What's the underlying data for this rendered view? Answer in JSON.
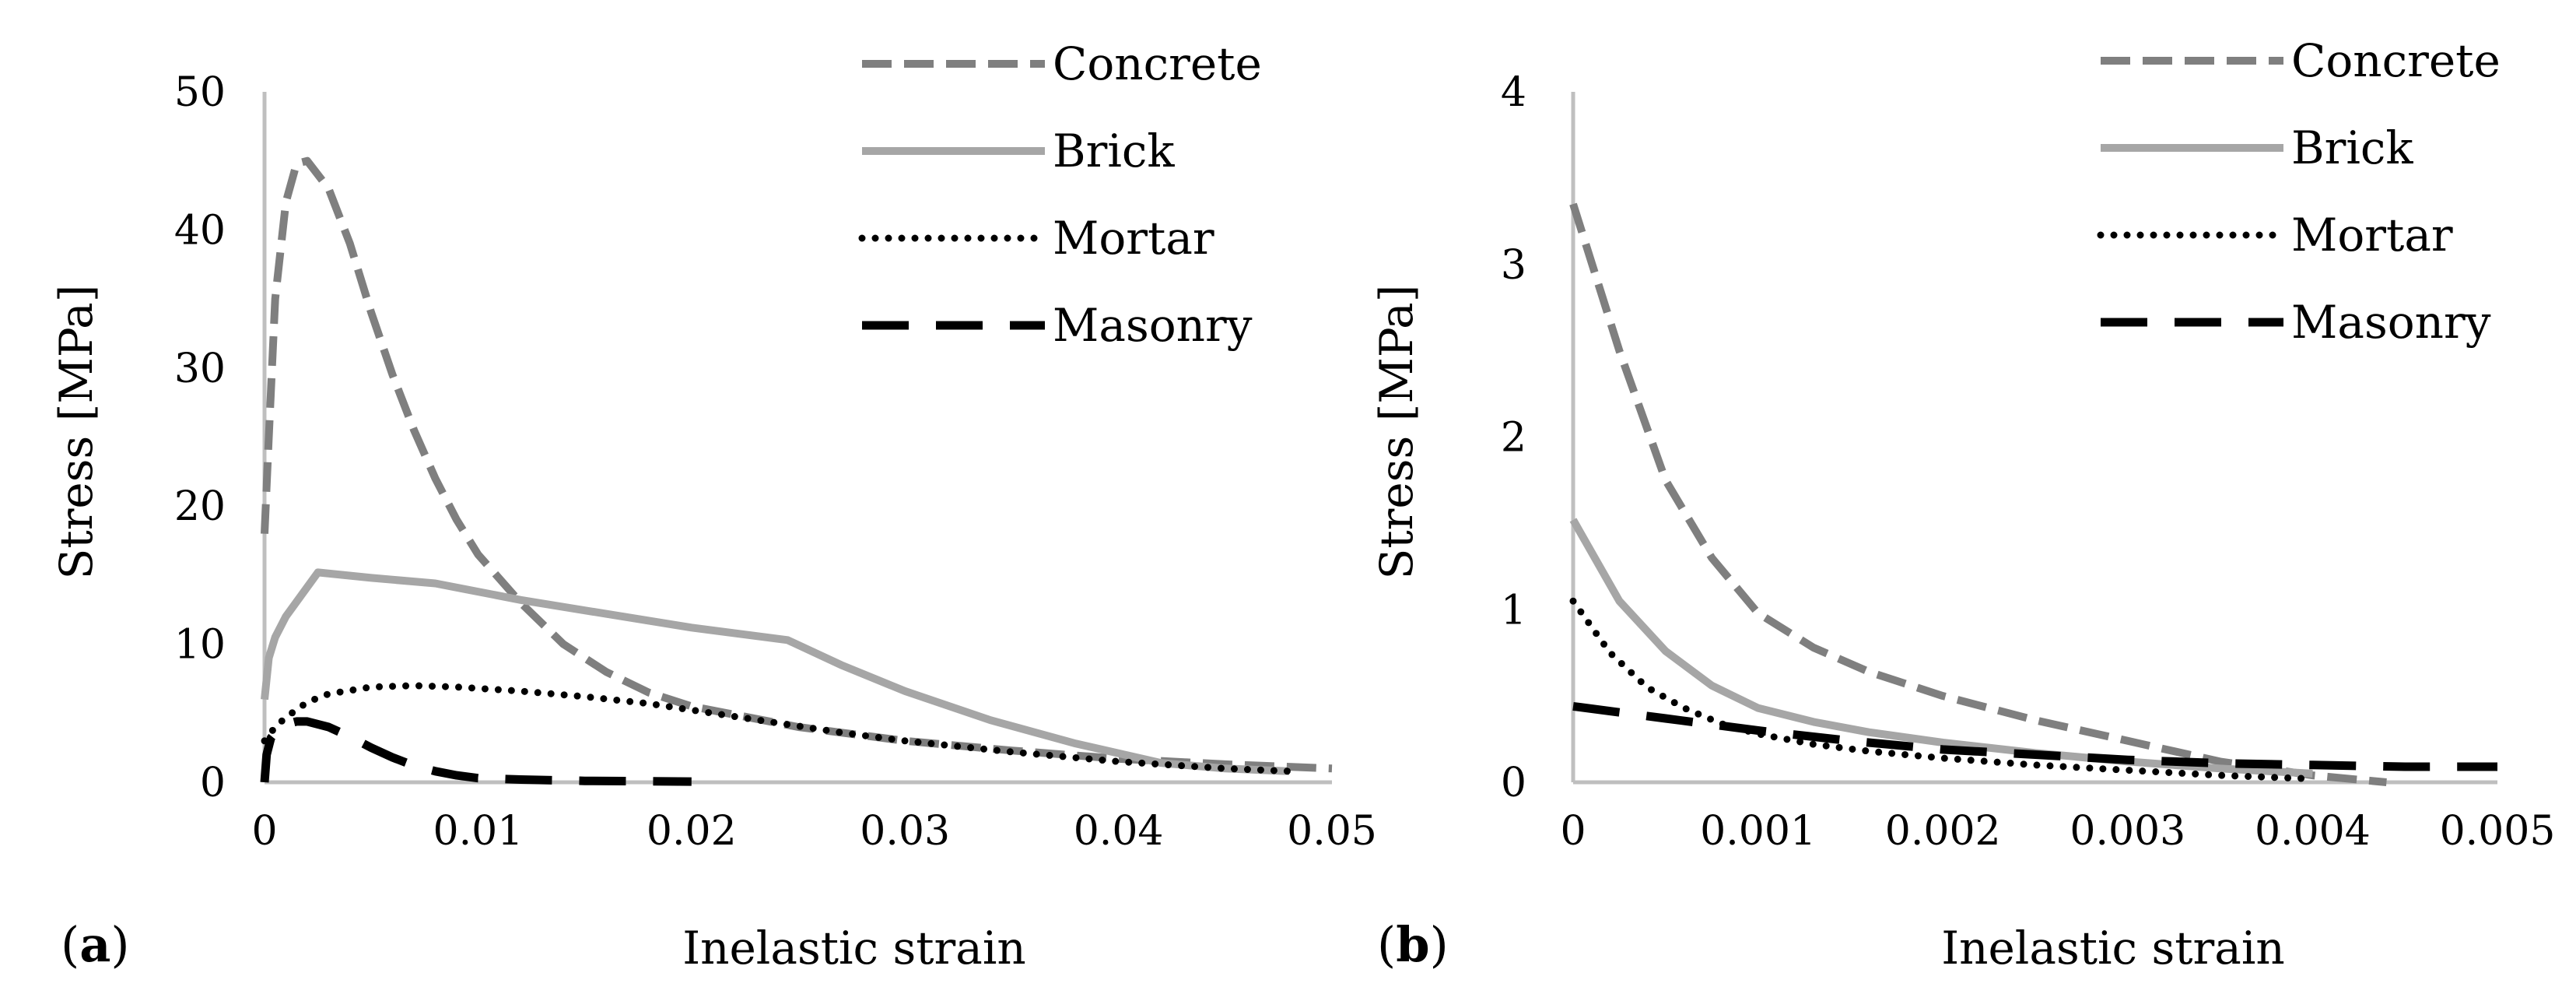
{
  "chart_data": [
    {
      "type": "line",
      "panel_label": "(a)",
      "panel_letter": "a",
      "xlabel": "Inelastic strain",
      "ylabel": "Stress [MPa]",
      "xlim": [
        0,
        0.05
      ],
      "ylim": [
        0,
        50
      ],
      "xticks": [
        0,
        0.01,
        0.02,
        0.03,
        0.04,
        0.05
      ],
      "xtick_labels": [
        "0",
        "0.01",
        "0.02",
        "0.03",
        "0.04",
        "0.05"
      ],
      "yticks": [
        0,
        10,
        20,
        30,
        40,
        50
      ],
      "ytick_labels": [
        "0",
        "10",
        "20",
        "30",
        "40",
        "50"
      ],
      "legend_position": "top-right",
      "series": [
        {
          "name": "Concrete",
          "color": "#7f7f7f",
          "dash": "dash",
          "points": [
            [
              0,
              18
            ],
            [
              0.0002,
              25
            ],
            [
              0.0005,
              35
            ],
            [
              0.001,
              42
            ],
            [
              0.0015,
              44.8
            ],
            [
              0.002,
              45
            ],
            [
              0.003,
              43
            ],
            [
              0.004,
              39
            ],
            [
              0.005,
              34
            ],
            [
              0.006,
              29.5
            ],
            [
              0.007,
              25.5
            ],
            [
              0.008,
              22
            ],
            [
              0.009,
              19
            ],
            [
              0.01,
              16.5
            ],
            [
              0.012,
              13
            ],
            [
              0.014,
              10
            ],
            [
              0.016,
              8
            ],
            [
              0.018,
              6.5
            ],
            [
              0.02,
              5.5
            ],
            [
              0.025,
              4
            ],
            [
              0.03,
              3
            ],
            [
              0.035,
              2.3
            ],
            [
              0.04,
              1.7
            ],
            [
              0.045,
              1.3
            ],
            [
              0.05,
              1
            ]
          ]
        },
        {
          "name": "Brick",
          "color": "#a6a6a6",
          "dash": "solid",
          "points": [
            [
              0,
              6
            ],
            [
              0.0002,
              9
            ],
            [
              0.0005,
              10.5
            ],
            [
              0.001,
              12
            ],
            [
              0.0025,
              15.2
            ],
            [
              0.005,
              14.8
            ],
            [
              0.008,
              14.4
            ],
            [
              0.012,
              13.2
            ],
            [
              0.016,
              12.2
            ],
            [
              0.02,
              11.2
            ],
            [
              0.0245,
              10.3
            ],
            [
              0.027,
              8.5
            ],
            [
              0.03,
              6.6
            ],
            [
              0.034,
              4.5
            ],
            [
              0.038,
              2.8
            ],
            [
              0.042,
              1.4
            ],
            [
              0.045,
              1
            ],
            [
              0.048,
              0.8
            ]
          ]
        },
        {
          "name": "Mortar",
          "color": "#000000",
          "dash": "dot",
          "points": [
            [
              0,
              3
            ],
            [
              0.0005,
              4
            ],
            [
              0.001,
              4.7
            ],
            [
              0.002,
              5.8
            ],
            [
              0.003,
              6.4
            ],
            [
              0.005,
              6.9
            ],
            [
              0.007,
              7
            ],
            [
              0.009,
              6.9
            ],
            [
              0.012,
              6.6
            ],
            [
              0.015,
              6.2
            ],
            [
              0.018,
              5.7
            ],
            [
              0.021,
              5
            ],
            [
              0.024,
              4.3
            ],
            [
              0.027,
              3.6
            ],
            [
              0.03,
              3
            ],
            [
              0.035,
              2.2
            ],
            [
              0.04,
              1.5
            ],
            [
              0.045,
              1
            ],
            [
              0.048,
              0.8
            ]
          ]
        },
        {
          "name": "Masonry",
          "color": "#000000",
          "dash": "longdash",
          "points": [
            [
              0,
              0
            ],
            [
              0.0001,
              2
            ],
            [
              0.0003,
              3.2
            ],
            [
              0.0006,
              3.8
            ],
            [
              0.001,
              4.2
            ],
            [
              0.0015,
              4.4
            ],
            [
              0.002,
              4.4
            ],
            [
              0.003,
              4
            ],
            [
              0.004,
              3.3
            ],
            [
              0.005,
              2.5
            ],
            [
              0.006,
              1.8
            ],
            [
              0.007,
              1.2
            ],
            [
              0.008,
              0.8
            ],
            [
              0.009,
              0.5
            ],
            [
              0.01,
              0.3
            ],
            [
              0.012,
              0.2
            ],
            [
              0.015,
              0.1
            ],
            [
              0.02,
              0.05
            ]
          ]
        }
      ]
    },
    {
      "type": "line",
      "panel_label": "(b)",
      "panel_letter": "b",
      "xlabel": "Inelastic strain",
      "ylabel": "Stress [MPa]",
      "xlim": [
        0,
        0.005
      ],
      "ylim": [
        0,
        4
      ],
      "xticks": [
        0,
        0.001,
        0.002,
        0.003,
        0.004,
        0.005
      ],
      "xtick_labels": [
        "0",
        "0.001",
        "0.002",
        "0.003",
        "0.004",
        "0.005"
      ],
      "yticks": [
        0,
        1,
        2,
        3,
        4
      ],
      "ytick_labels": [
        "0",
        "1",
        "2",
        "3",
        "4"
      ],
      "legend_position": "top-right",
      "series": [
        {
          "name": "Concrete",
          "color": "#7f7f7f",
          "dash": "dash",
          "points": [
            [
              0,
              3.35
            ],
            [
              0.00025,
              2.5
            ],
            [
              0.0005,
              1.75
            ],
            [
              0.00075,
              1.3
            ],
            [
              0.001,
              0.98
            ],
            [
              0.0013,
              0.78
            ],
            [
              0.0016,
              0.64
            ],
            [
              0.002,
              0.5
            ],
            [
              0.0025,
              0.36
            ],
            [
              0.003,
              0.24
            ],
            [
              0.0035,
              0.12
            ],
            [
              0.004,
              0.04
            ],
            [
              0.0044,
              0
            ]
          ]
        },
        {
          "name": "Brick",
          "color": "#a6a6a6",
          "dash": "solid",
          "points": [
            [
              0,
              1.52
            ],
            [
              0.00025,
              1.05
            ],
            [
              0.0005,
              0.76
            ],
            [
              0.00075,
              0.56
            ],
            [
              0.001,
              0.43
            ],
            [
              0.0013,
              0.35
            ],
            [
              0.0016,
              0.29
            ],
            [
              0.002,
              0.23
            ],
            [
              0.0025,
              0.17
            ],
            [
              0.003,
              0.12
            ],
            [
              0.0035,
              0.08
            ],
            [
              0.004,
              0.05
            ]
          ]
        },
        {
          "name": "Mortar",
          "color": "#000000",
          "dash": "dot",
          "points": [
            [
              0,
              1.05
            ],
            [
              0.0002,
              0.75
            ],
            [
              0.0004,
              0.55
            ],
            [
              0.0006,
              0.43
            ],
            [
              0.0008,
              0.34
            ],
            [
              0.001,
              0.28
            ],
            [
              0.0013,
              0.22
            ],
            [
              0.0016,
              0.18
            ],
            [
              0.002,
              0.14
            ],
            [
              0.0025,
              0.1
            ],
            [
              0.003,
              0.07
            ],
            [
              0.0035,
              0.04
            ],
            [
              0.004,
              0.02
            ]
          ]
        },
        {
          "name": "Masonry",
          "color": "#000000",
          "dash": "longdash",
          "points": [
            [
              0,
              0.44
            ],
            [
              0.0005,
              0.37
            ],
            [
              0.001,
              0.3
            ],
            [
              0.0015,
              0.24
            ],
            [
              0.002,
              0.19
            ],
            [
              0.0025,
              0.16
            ],
            [
              0.003,
              0.13
            ],
            [
              0.0035,
              0.11
            ],
            [
              0.004,
              0.1
            ],
            [
              0.0045,
              0.09
            ],
            [
              0.005,
              0.09
            ]
          ]
        }
      ]
    }
  ]
}
